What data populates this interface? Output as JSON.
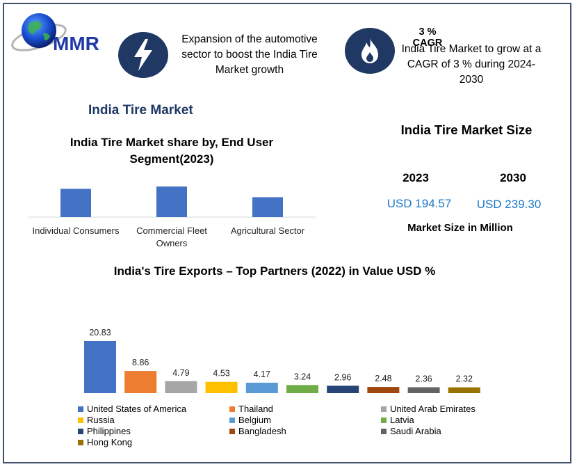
{
  "logo": {
    "text": "MMR"
  },
  "driver": {
    "text": "Expansion of the automotive sector to boost the India Tire Market growth",
    "icon": "lightning-icon"
  },
  "cagr": {
    "title": "3 % CAGR",
    "text": "India Tire Market to grow at a CAGR of 3 % during 2024-2030",
    "icon": "flame-icon"
  },
  "section_title": "India Tire Market",
  "market_size": {
    "title": "India Tire Market Size",
    "year_a": "2023",
    "value_a": "USD 194.57",
    "year_b": "2030",
    "value_b": "USD 239.30",
    "unit_note": "Market Size in Million"
  },
  "colors": {
    "navy": "#1f3864",
    "accent_blue": "#1f78c8",
    "bar_blue": "#4472c4"
  },
  "chart_data": [
    {
      "type": "bar",
      "title": "India Tire Market share by, End User Segment(2023)",
      "categories": [
        "Individual Consumers",
        "Commercial Fleet Owners",
        "Agricultural Sector"
      ],
      "category_lines": [
        [
          "Individual Consumers"
        ],
        [
          "Commercial Fleet",
          "Owners"
        ],
        [
          "Agricultural Sector"
        ]
      ],
      "values": [
        37,
        40,
        26
      ],
      "value_labels_shown": false,
      "color": "#4472c4",
      "grid": false
    },
    {
      "type": "bar",
      "title": "India's Tire Exports – Top Partners (2022) in Value USD %",
      "categories": [
        "United States of America",
        "Thailand",
        "United Arab Emirates",
        "Russia",
        "Belgium",
        "Latvia",
        "Philippines",
        "Bangladesh",
        "Saudi Arabia",
        "Hong Kong"
      ],
      "values": [
        20.83,
        8.86,
        4.79,
        4.53,
        4.17,
        3.24,
        2.96,
        2.48,
        2.36,
        2.32
      ],
      "value_labels": [
        "20.83",
        "8.86",
        "4.79",
        "4.53",
        "4.17",
        "3.24",
        "2.96",
        "2.48",
        "2.36",
        "2.32"
      ],
      "colors": [
        "#4472c4",
        "#ed7d31",
        "#a5a5a5",
        "#ffc000",
        "#5b9bd5",
        "#70ad47",
        "#264478",
        "#9e480e",
        "#636363",
        "#997300"
      ],
      "legend": "bottom",
      "grid": false
    }
  ]
}
